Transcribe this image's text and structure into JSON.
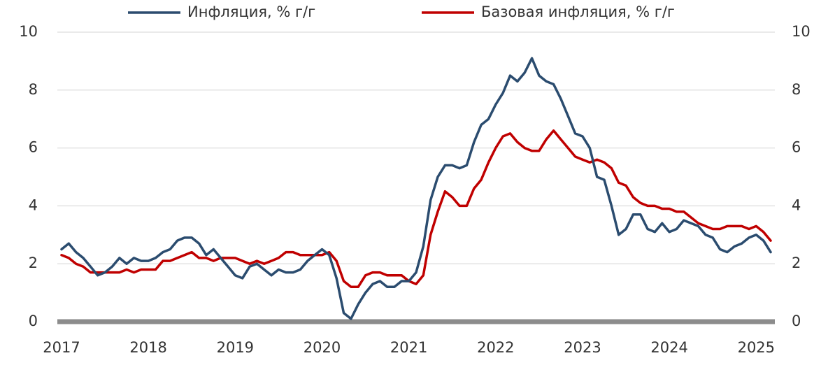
{
  "chart_data": {
    "type": "line",
    "categories": [
      "2017",
      null,
      null,
      null,
      null,
      null,
      null,
      null,
      null,
      null,
      null,
      null,
      "2018",
      null,
      null,
      null,
      null,
      null,
      null,
      null,
      null,
      null,
      null,
      null,
      "2019",
      null,
      null,
      null,
      null,
      null,
      null,
      null,
      null,
      null,
      null,
      null,
      "2020",
      null,
      null,
      null,
      null,
      null,
      null,
      null,
      null,
      null,
      null,
      null,
      "2021",
      null,
      null,
      null,
      null,
      null,
      null,
      null,
      null,
      null,
      null,
      null,
      "2022",
      null,
      null,
      null,
      null,
      null,
      null,
      null,
      null,
      null,
      null,
      null,
      "2023",
      null,
      null,
      null,
      null,
      null,
      null,
      null,
      null,
      null,
      null,
      null,
      "2024",
      null,
      null,
      null,
      null,
      null,
      null,
      null,
      null,
      null,
      null,
      null,
      "2025",
      null,
      null
    ],
    "series": [
      {
        "name": "Инфляция, % г/г",
        "color": "#2b4c6f",
        "values": [
          2.5,
          2.7,
          2.4,
          2.2,
          1.9,
          1.6,
          1.7,
          1.9,
          2.2,
          2.0,
          2.2,
          2.1,
          2.1,
          2.2,
          2.4,
          2.5,
          2.8,
          2.9,
          2.9,
          2.7,
          2.3,
          2.5,
          2.2,
          1.9,
          1.6,
          1.5,
          1.9,
          2.0,
          1.8,
          1.6,
          1.8,
          1.7,
          1.7,
          1.8,
          2.1,
          2.3,
          2.5,
          2.3,
          1.5,
          0.3,
          0.1,
          0.6,
          1.0,
          1.3,
          1.4,
          1.2,
          1.2,
          1.4,
          1.4,
          1.7,
          2.6,
          4.2,
          5.0,
          5.4,
          5.4,
          5.3,
          5.4,
          6.2,
          6.8,
          7.0,
          7.5,
          7.9,
          8.5,
          8.3,
          8.6,
          9.1,
          8.5,
          8.3,
          8.2,
          7.7,
          7.1,
          6.5,
          6.4,
          6.0,
          5.0,
          4.9,
          4.0,
          3.0,
          3.2,
          3.7,
          3.7,
          3.2,
          3.1,
          3.4,
          3.1,
          3.2,
          3.5,
          3.4,
          3.3,
          3.0,
          2.9,
          2.5,
          2.4,
          2.6,
          2.7,
          2.9,
          3.0,
          2.8,
          2.4
        ]
      },
      {
        "name": "Базовая инфляция, % г/г",
        "color": "#c00000",
        "values": [
          2.3,
          2.2,
          2.0,
          1.9,
          1.7,
          1.7,
          1.7,
          1.7,
          1.7,
          1.8,
          1.7,
          1.8,
          1.8,
          1.8,
          2.1,
          2.1,
          2.2,
          2.3,
          2.4,
          2.2,
          2.2,
          2.1,
          2.2,
          2.2,
          2.2,
          2.1,
          2.0,
          2.1,
          2.0,
          2.1,
          2.2,
          2.4,
          2.4,
          2.3,
          2.3,
          2.3,
          2.3,
          2.4,
          2.1,
          1.4,
          1.2,
          1.2,
          1.6,
          1.7,
          1.7,
          1.6,
          1.6,
          1.6,
          1.4,
          1.3,
          1.6,
          3.0,
          3.8,
          4.5,
          4.3,
          4.0,
          4.0,
          4.6,
          4.9,
          5.5,
          6.0,
          6.4,
          6.5,
          6.2,
          6.0,
          5.9,
          5.9,
          6.3,
          6.6,
          6.3,
          6.0,
          5.7,
          5.6,
          5.5,
          5.6,
          5.5,
          5.3,
          4.8,
          4.7,
          4.3,
          4.1,
          4.0,
          4.0,
          3.9,
          3.9,
          3.8,
          3.8,
          3.6,
          3.4,
          3.3,
          3.2,
          3.2,
          3.3,
          3.3,
          3.3,
          3.2,
          3.3,
          3.1,
          2.8
        ]
      }
    ],
    "ylim": [
      0,
      10
    ],
    "yticks": [
      0,
      2,
      4,
      6,
      8,
      10
    ],
    "grid": true,
    "legend": "top"
  }
}
